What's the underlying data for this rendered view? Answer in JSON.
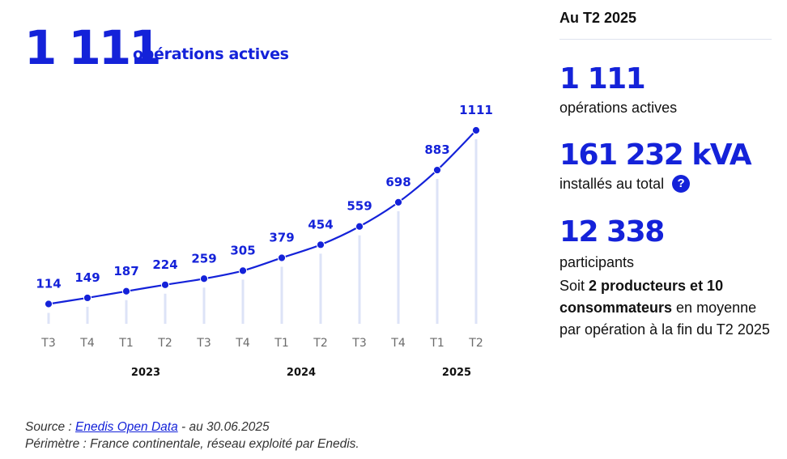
{
  "headline": {
    "value": "1 111",
    "label": "opérations actives"
  },
  "chart_data": {
    "type": "line",
    "title": "",
    "xlabel": "",
    "ylabel": "",
    "categories": [
      "T3",
      "T4",
      "T1",
      "T2",
      "T3",
      "T4",
      "T1",
      "T2",
      "T3",
      "T4",
      "T1",
      "T2"
    ],
    "years": [
      {
        "label": "2023",
        "center_index": 2.5
      },
      {
        "label": "2024",
        "center_index": 6.5
      },
      {
        "label": "2025",
        "center_index": 10.5
      }
    ],
    "series": [
      {
        "name": "opérations actives",
        "values": [
          114,
          149,
          187,
          224,
          259,
          305,
          379,
          454,
          559,
          698,
          883,
          1111
        ]
      }
    ],
    "data_labels": [
      "114",
      "149",
      "187",
      "224",
      "259",
      "305",
      "379",
      "454",
      "559",
      "698",
      "883",
      "1111"
    ],
    "ylim": [
      0,
      1111
    ],
    "grid": false,
    "legend": "none",
    "colors": {
      "line": "#1422d9",
      "bar": "#dde3f7"
    }
  },
  "source": {
    "prefix": "Source : ",
    "link": "Enedis Open Data",
    "suffix": " - au 30.06.2025",
    "scope": "Périmètre : France continentale, réseau exploité par Enedis."
  },
  "panel": {
    "title": "Au T2 2025",
    "operations": {
      "value": "1 111",
      "label": "opérations actives"
    },
    "power": {
      "value": "161 232 kVA",
      "label": "installés au total",
      "help": "?"
    },
    "participants": {
      "value": "12 338",
      "label": "participants"
    },
    "desc": {
      "p1": "Soit ",
      "b1": "2 producteurs et 10 consommateurs",
      "p2": " en moyenne par opération à la fin du T2 2025"
    }
  }
}
